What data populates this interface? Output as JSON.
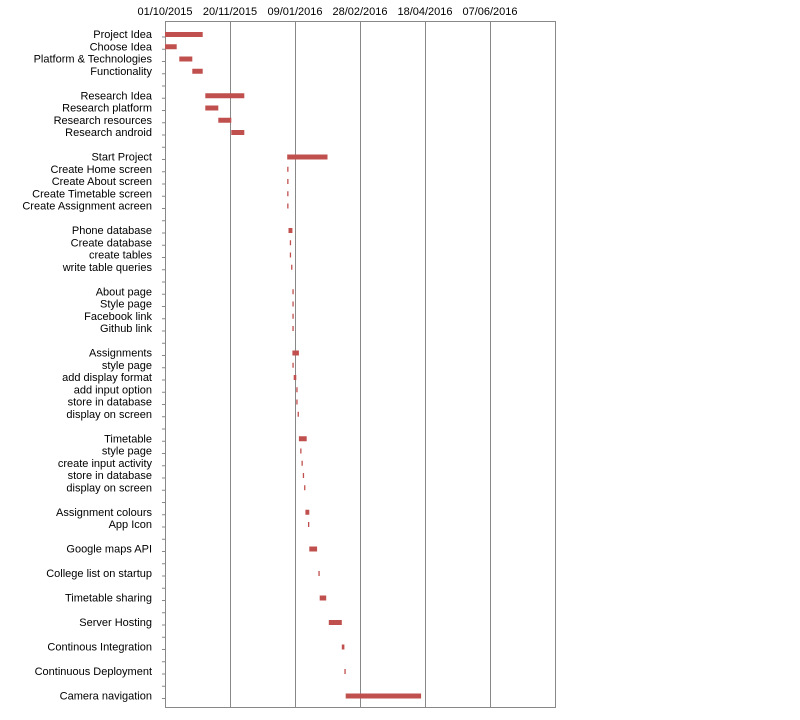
{
  "chart_data": {
    "type": "gantt",
    "x_axis": {
      "ticks": [
        "01/10/2015",
        "20/11/2015",
        "09/01/2016",
        "28/02/2016",
        "18/04/2016",
        "07/06/2016"
      ],
      "position": "top",
      "grid": true,
      "range": [
        "01/10/2015",
        "27/07/2016"
      ]
    },
    "bar_color": "#C0504D",
    "tasks": [
      {
        "label": "Project Idea",
        "start": "01/10/2015",
        "end": "30/10/2015"
      },
      {
        "label": "Choose Idea",
        "start": "01/10/2015",
        "end": "10/10/2015"
      },
      {
        "label": "Platform & Technologies",
        "start": "12/10/2015",
        "end": "22/10/2015"
      },
      {
        "label": "Functionality",
        "start": "22/10/2015",
        "end": "30/10/2015"
      },
      {
        "label": "",
        "start": null,
        "end": null
      },
      {
        "label": "Research Idea",
        "start": "01/11/2015",
        "end": "01/12/2015"
      },
      {
        "label": "Research platform",
        "start": "01/11/2015",
        "end": "11/11/2015"
      },
      {
        "label": "Research resources",
        "start": "11/11/2015",
        "end": "21/11/2015"
      },
      {
        "label": "Research android",
        "start": "21/11/2015",
        "end": "01/12/2015"
      },
      {
        "label": "",
        "start": null,
        "end": null
      },
      {
        "label": "Start Project",
        "start": "03/01/2016",
        "end": "03/02/2016"
      },
      {
        "label": "Create Home screen",
        "start": "03/01/2016",
        "end": "04/01/2016"
      },
      {
        "label": "Create About screen",
        "start": "03/01/2016",
        "end": "04/01/2016"
      },
      {
        "label": "Create Timetable screen",
        "start": "03/01/2016",
        "end": "04/01/2016"
      },
      {
        "label": "Create Assignment acreen",
        "start": "03/01/2016",
        "end": "04/01/2016"
      },
      {
        "label": "",
        "start": null,
        "end": null
      },
      {
        "label": "Phone database",
        "start": "04/01/2016",
        "end": "07/01/2016"
      },
      {
        "label": "Create database",
        "start": "05/01/2016",
        "end": "06/01/2016"
      },
      {
        "label": "create tables",
        "start": "05/01/2016",
        "end": "06/01/2016"
      },
      {
        "label": "write table queries",
        "start": "06/01/2016",
        "end": "07/01/2016"
      },
      {
        "label": "",
        "start": null,
        "end": null
      },
      {
        "label": "About page",
        "start": "07/01/2016",
        "end": "08/01/2016"
      },
      {
        "label": "Style page",
        "start": "07/01/2016",
        "end": "08/01/2016"
      },
      {
        "label": "Facebook link",
        "start": "07/01/2016",
        "end": "08/01/2016"
      },
      {
        "label": "Github link",
        "start": "07/01/2016",
        "end": "08/01/2016"
      },
      {
        "label": "",
        "start": null,
        "end": null
      },
      {
        "label": "Assignments",
        "start": "07/01/2016",
        "end": "12/01/2016"
      },
      {
        "label": "style page",
        "start": "07/01/2016",
        "end": "08/01/2016"
      },
      {
        "label": "add display format",
        "start": "08/01/2016",
        "end": "10/01/2016"
      },
      {
        "label": "add input option",
        "start": "10/01/2016",
        "end": "11/01/2016"
      },
      {
        "label": "store in database",
        "start": "10/01/2016",
        "end": "11/01/2016"
      },
      {
        "label": "display on screen",
        "start": "11/01/2016",
        "end": "12/01/2016"
      },
      {
        "label": "",
        "start": null,
        "end": null
      },
      {
        "label": "Timetable",
        "start": "12/01/2016",
        "end": "18/01/2016"
      },
      {
        "label": "style page",
        "start": "13/01/2016",
        "end": "14/01/2016"
      },
      {
        "label": "create input activity",
        "start": "14/01/2016",
        "end": "15/01/2016"
      },
      {
        "label": "store in database",
        "start": "15/01/2016",
        "end": "16/01/2016"
      },
      {
        "label": "display on screen",
        "start": "16/01/2016",
        "end": "17/01/2016"
      },
      {
        "label": "",
        "start": null,
        "end": null
      },
      {
        "label": "Assignment colours",
        "start": "17/01/2016",
        "end": "20/01/2016"
      },
      {
        "label": "App Icon",
        "start": "19/01/2016",
        "end": "20/01/2016"
      },
      {
        "label": "",
        "start": null,
        "end": null
      },
      {
        "label": "Google maps API",
        "start": "20/01/2016",
        "end": "26/01/2016"
      },
      {
        "label": "",
        "start": null,
        "end": null
      },
      {
        "label": "College list on startup",
        "start": "27/01/2016",
        "end": "28/01/2016"
      },
      {
        "label": "",
        "start": null,
        "end": null
      },
      {
        "label": "Timetable sharing",
        "start": "28/01/2016",
        "end": "02/02/2016"
      },
      {
        "label": "",
        "start": null,
        "end": null
      },
      {
        "label": "Server Hosting",
        "start": "04/02/2016",
        "end": "14/02/2016"
      },
      {
        "label": "",
        "start": null,
        "end": null
      },
      {
        "label": "Continous Integration",
        "start": "14/02/2016",
        "end": "16/02/2016"
      },
      {
        "label": "",
        "start": null,
        "end": null
      },
      {
        "label": "Continuous Deployment",
        "start": "16/02/2016",
        "end": "17/02/2016"
      },
      {
        "label": "",
        "start": null,
        "end": null
      },
      {
        "label": "Camera navigation",
        "start": "17/02/2016",
        "end": "15/04/2016"
      }
    ]
  }
}
